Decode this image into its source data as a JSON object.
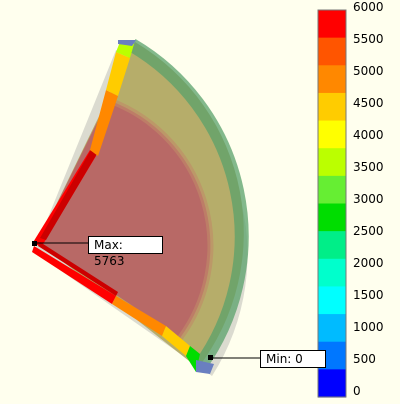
{
  "legend": {
    "ticks": [
      "6000",
      "5500",
      "5000",
      "4500",
      "4000",
      "3500",
      "3000",
      "2500",
      "2000",
      "1500",
      "1000",
      "500",
      "0"
    ],
    "band_colors": [
      "#ff0000",
      "#ff5500",
      "#ff8800",
      "#ffcc00",
      "#ffff00",
      "#bbff00",
      "#66ee33",
      "#00dd00",
      "#00ee88",
      "#00ffcc",
      "#00ffff",
      "#00bbff",
      "#0077ff",
      "#0000ff"
    ]
  },
  "callouts": {
    "max_label": "Max: 5763",
    "min_label": "Min: 0"
  },
  "model": {
    "outer_color": "#b6ad6a",
    "inner_color": "#b95d65",
    "edge_band_color": "#5aa26b"
  }
}
